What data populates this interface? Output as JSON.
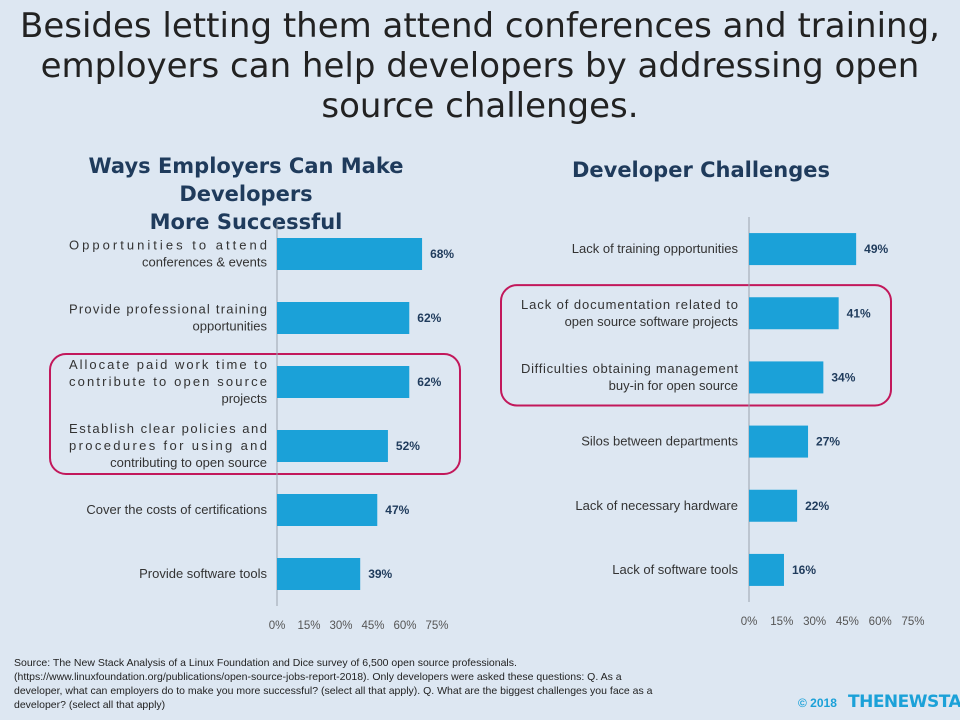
{
  "headline": [
    "Besides letting them attend conferences and training,",
    "employers can help developers by addressing open",
    "source challenges."
  ],
  "source_lines": [
    "Source: The New Stack Analysis of a Linux Foundation and Dice survey of 6,500 open source professionals.",
    "(https://www.linuxfoundation.org/publications/open-source-jobs-report-2018).  Only developers were asked these questions: Q. As a",
    "developer, what can employers do to make you more successful? (select all that apply). Q. What are the biggest challenges you face as a",
    "developer? (select all that apply)"
  ],
  "footer": {
    "copyright": "© 2018",
    "logo": "THENEWSTACK"
  },
  "colors": {
    "bar": "#1ba1d8",
    "highlight": "#c2185b",
    "title": "#1f3b5c",
    "background": "#dde7f2"
  },
  "chart_data": [
    {
      "type": "bar",
      "orientation": "horizontal",
      "title_lines": [
        "Ways Employers Can Make Developers",
        "More Successful"
      ],
      "categories": [
        [
          "Opportunities to attend",
          "conferences & events"
        ],
        [
          "Provide professional training",
          "opportunities"
        ],
        [
          "Allocate paid work time to",
          "contribute to open source",
          "projects"
        ],
        [
          "Establish clear policies and",
          "procedures for using and",
          "contributing to open source"
        ],
        [
          "Cover the costs of certifications"
        ],
        [
          "Provide software tools"
        ]
      ],
      "values": [
        68,
        62,
        62,
        52,
        47,
        39
      ],
      "value_labels": [
        "68%",
        "62%",
        "62%",
        "52%",
        "47%",
        "39%"
      ],
      "ticks": [
        0,
        15,
        30,
        45,
        60,
        75
      ],
      "tick_labels": [
        "0%",
        "15%",
        "30%",
        "45%",
        "60%",
        "75%"
      ],
      "xlim": [
        0,
        75
      ],
      "highlighted": [
        2,
        3
      ]
    },
    {
      "type": "bar",
      "orientation": "horizontal",
      "title_lines": [
        "Developer Challenges"
      ],
      "categories": [
        [
          "Lack of training opportunities"
        ],
        [
          "Lack of documentation related to",
          "open source software projects"
        ],
        [
          "Difficulties obtaining management",
          "buy-in for open source"
        ],
        [
          "Silos between departments"
        ],
        [
          "Lack of necessary hardware"
        ],
        [
          "Lack of software tools"
        ]
      ],
      "values": [
        49,
        41,
        34,
        27,
        22,
        16
      ],
      "value_labels": [
        "49%",
        "41%",
        "34%",
        "27%",
        "22%",
        "16%"
      ],
      "ticks": [
        0,
        15,
        30,
        45,
        60,
        75
      ],
      "tick_labels": [
        "0%",
        "15%",
        "30%",
        "45%",
        "60%",
        "75%"
      ],
      "xlim": [
        0,
        75
      ],
      "highlighted": [
        1,
        2
      ]
    }
  ]
}
